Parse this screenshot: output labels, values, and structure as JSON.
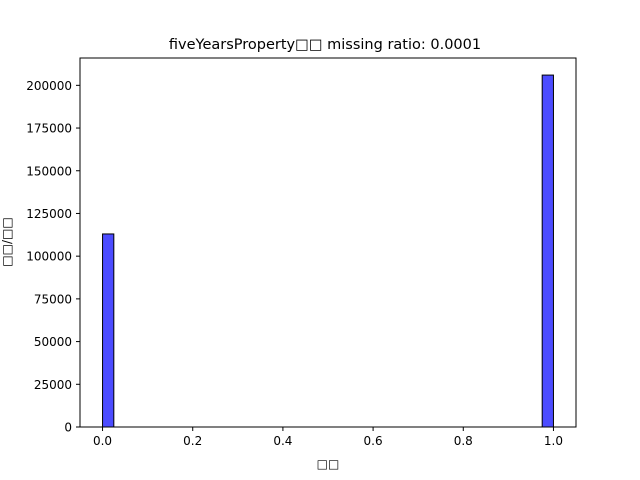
{
  "chart_data": {
    "type": "bar",
    "title": "fiveYearsProperty□□  missing ratio: 0.0001",
    "xlabel": "□□",
    "ylabel": "□□/□□",
    "xlim": [
      -0.05,
      1.05
    ],
    "ylim": [
      0,
      216000
    ],
    "x_ticks": [
      "0.0",
      "0.2",
      "0.4",
      "0.6",
      "0.8",
      "1.0"
    ],
    "x_tick_values": [
      0.0,
      0.2,
      0.4,
      0.6,
      0.8,
      1.0
    ],
    "y_ticks": [
      "0",
      "25000",
      "50000",
      "75000",
      "100000",
      "125000",
      "150000",
      "175000",
      "200000"
    ],
    "y_tick_values": [
      0,
      25000,
      50000,
      75000,
      100000,
      125000,
      150000,
      175000,
      200000
    ],
    "bin_width": 0.025,
    "bars": [
      {
        "x_start": 0.0,
        "value": 113000
      },
      {
        "x_start": 0.975,
        "value": 206000
      }
    ],
    "bar_color": "#0000ff",
    "bar_opacity": 0.7,
    "edge_color": "#000000",
    "grid": false,
    "legend": "none"
  }
}
